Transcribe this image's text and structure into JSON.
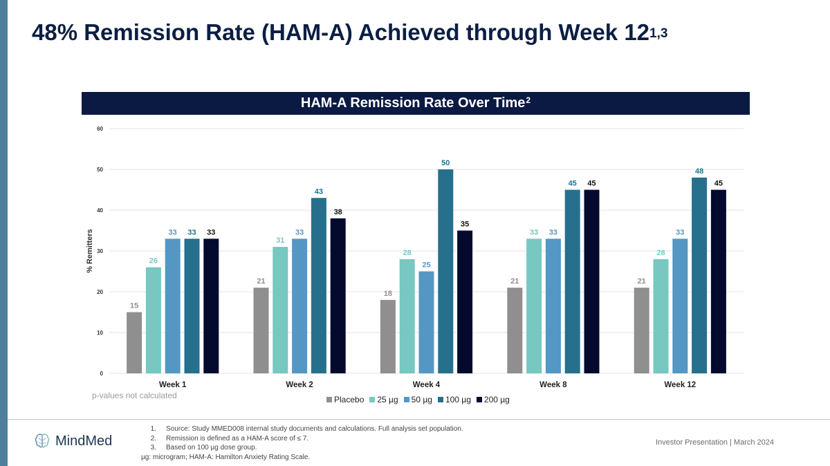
{
  "title": {
    "text": "48% Remission Rate (HAM-A) Achieved through Week 12",
    "superscript": "1,3"
  },
  "chart_banner": {
    "text": "HAM-A Remission Rate Over Time",
    "superscript": "2"
  },
  "chart_data": {
    "type": "bar",
    "title": "HAM-A Remission Rate Over Time",
    "xlabel": "",
    "ylabel": "% Remitters",
    "ylim": [
      0,
      60
    ],
    "yticks": [
      0,
      10,
      20,
      30,
      40,
      50,
      60
    ],
    "grid": true,
    "legend": "bottom",
    "categories": [
      "Week 1",
      "Week 2",
      "Week 4",
      "Week 8",
      "Week 12"
    ],
    "series": [
      {
        "name": "Placebo",
        "color": "#8f8f8f",
        "label_color": "#8f8f8f",
        "values": [
          15,
          21,
          18,
          21,
          21
        ]
      },
      {
        "name": "25 µg",
        "color": "#76c8c0",
        "label_color": "#76c8c0",
        "values": [
          26,
          31,
          28,
          33,
          28
        ]
      },
      {
        "name": "50 µg",
        "color": "#5597c4",
        "label_color": "#5597c4",
        "values": [
          33,
          33,
          25,
          33,
          33
        ]
      },
      {
        "name": "100 µg",
        "color": "#26708e",
        "label_color": "#26708e",
        "values": [
          33,
          43,
          50,
          45,
          48
        ]
      },
      {
        "name": "200 µg",
        "color": "#030a2e",
        "label_color": "#111111",
        "values": [
          33,
          38,
          35,
          45,
          45
        ]
      }
    ]
  },
  "note": "p-values not calculated",
  "footnotes": [
    {
      "num": "1.",
      "text": "Source: Study MMED008 internal study documents and calculations. Full analysis set population."
    },
    {
      "num": "2.",
      "text": "Remission is defined as a HAM-A score of ≤ 7."
    },
    {
      "num": "3.",
      "text": "Based on 100 µg dose group."
    }
  ],
  "abbreviations": "µg: microgram; HAM-A: Hamilton Anxiety Rating Scale.",
  "logo": {
    "text": "MindMed",
    "icon": "brain-icon"
  },
  "presentation_label": "Investor Presentation | March 2024"
}
